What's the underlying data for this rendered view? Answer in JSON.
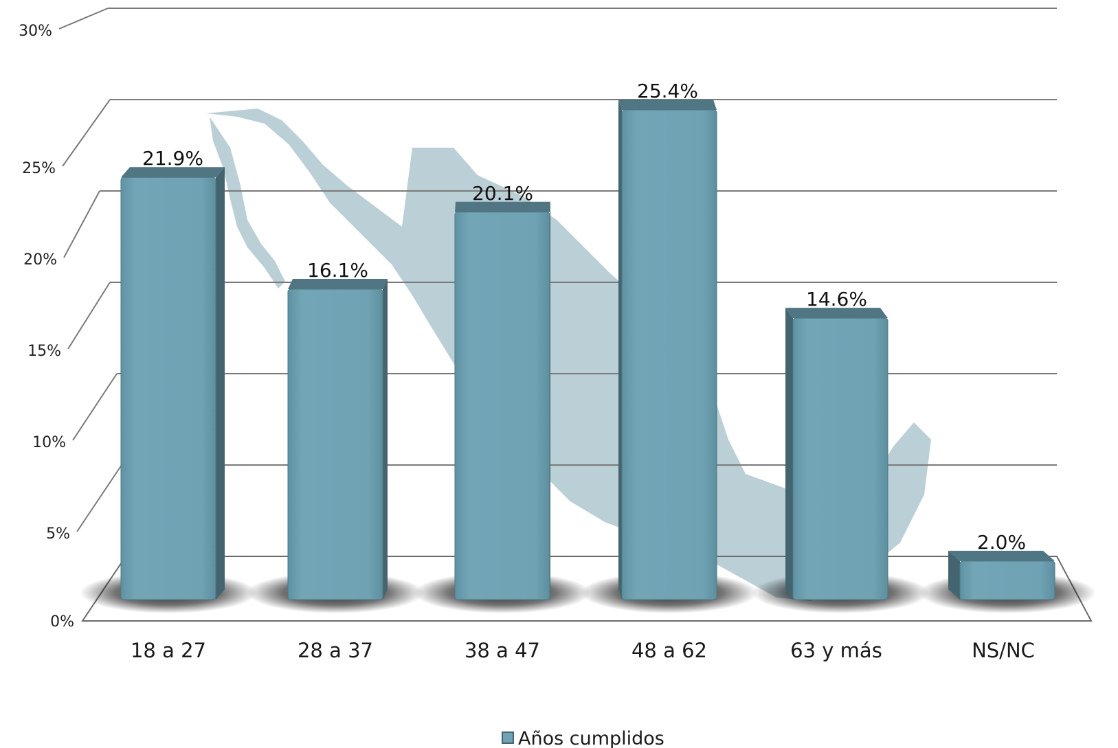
{
  "chart_data": {
    "type": "bar",
    "categories": [
      "18 a 27",
      "28 a 37",
      "38 a 47",
      "48 a 62",
      "63 y más",
      "NS/NC"
    ],
    "series": [
      {
        "name": "Años cumplidos",
        "values": [
          21.9,
          16.1,
          20.1,
          25.4,
          14.6,
          2.0
        ]
      }
    ],
    "data_labels": [
      "21.9%",
      "16.1%",
      "20.1%",
      "25.4%",
      "14.6%",
      "2.0%"
    ],
    "y_ticks": [
      "0%",
      "5%",
      "10%",
      "15%",
      "20%",
      "25%",
      "30%"
    ],
    "y_tick_values": [
      0,
      5,
      10,
      15,
      20,
      25,
      30
    ],
    "ylim": [
      0,
      30
    ],
    "grid": true,
    "style": "3d-perspective",
    "legend_position": "bottom-center",
    "colors": {
      "bar_front": "#6fa2b3",
      "bar_side": "#44656f",
      "bar_top": "#4f7682",
      "grid": "#7a7a7a",
      "map_background": "#b7ccd4"
    }
  }
}
